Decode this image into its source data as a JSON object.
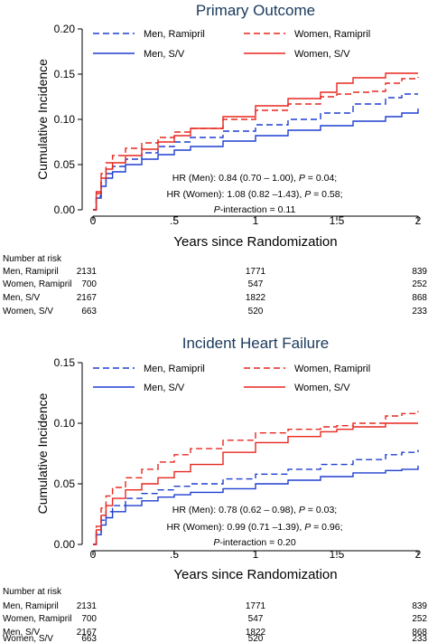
{
  "chart_data": [
    {
      "type": "line",
      "title": "Primary Outcome",
      "xlabel": "Years since Randomization",
      "ylabel": "Cumulative Incidence",
      "xlim": [
        0,
        2
      ],
      "ylim": [
        0,
        0.2
      ],
      "x_ticks": [
        {
          "v": 0,
          "label": "0"
        },
        {
          "v": 0.5,
          "label": ".5"
        },
        {
          "v": 1,
          "label": "1"
        },
        {
          "v": 1.5,
          "label": "1.5"
        },
        {
          "v": 2,
          "label": "2"
        }
      ],
      "y_ticks": [
        {
          "v": 0,
          "label": "0.00"
        },
        {
          "v": 0.05,
          "label": "0.05"
        },
        {
          "v": 0.1,
          "label": "0.10"
        },
        {
          "v": 0.15,
          "label": "0.15"
        },
        {
          "v": 0.2,
          "label": "0.20"
        }
      ],
      "series": [
        {
          "name": "Men, Ramipril",
          "color": "#1f3fd0",
          "dash": "dashed",
          "x": [
            0,
            0.02,
            0.05,
            0.08,
            0.12,
            0.2,
            0.3,
            0.4,
            0.5,
            0.6,
            0.8,
            1.0,
            1.2,
            1.4,
            1.6,
            1.8,
            1.9,
            2.0
          ],
          "y": [
            0,
            0.015,
            0.03,
            0.04,
            0.048,
            0.056,
            0.063,
            0.07,
            0.075,
            0.08,
            0.087,
            0.094,
            0.1,
            0.107,
            0.117,
            0.124,
            0.128,
            0.128
          ]
        },
        {
          "name": "Women, Ramipril",
          "color": "#e8271f",
          "dash": "dashed",
          "x": [
            0,
            0.02,
            0.05,
            0.08,
            0.12,
            0.2,
            0.3,
            0.4,
            0.5,
            0.6,
            0.8,
            1.0,
            1.2,
            1.4,
            1.5,
            1.6,
            1.7,
            1.8,
            1.9,
            2.0
          ],
          "y": [
            0,
            0.02,
            0.04,
            0.052,
            0.06,
            0.068,
            0.074,
            0.08,
            0.086,
            0.09,
            0.1,
            0.11,
            0.117,
            0.125,
            0.128,
            0.13,
            0.131,
            0.14,
            0.145,
            0.147
          ]
        },
        {
          "name": "Men, S/V",
          "color": "#1f3fd0",
          "dash": "solid",
          "x": [
            0,
            0.02,
            0.05,
            0.08,
            0.12,
            0.2,
            0.3,
            0.4,
            0.5,
            0.6,
            0.8,
            1.0,
            1.2,
            1.4,
            1.6,
            1.8,
            1.9,
            2.0
          ],
          "y": [
            0,
            0.013,
            0.026,
            0.035,
            0.042,
            0.05,
            0.056,
            0.061,
            0.066,
            0.07,
            0.076,
            0.082,
            0.088,
            0.093,
            0.098,
            0.103,
            0.107,
            0.112
          ]
        },
        {
          "name": "Women, S/V",
          "color": "#e8271f",
          "dash": "solid",
          "x": [
            0,
            0.02,
            0.05,
            0.08,
            0.12,
            0.2,
            0.3,
            0.4,
            0.5,
            0.6,
            0.8,
            1.0,
            1.2,
            1.4,
            1.5,
            1.6,
            1.8,
            2.0
          ],
          "y": [
            0,
            0.018,
            0.035,
            0.045,
            0.052,
            0.06,
            0.067,
            0.075,
            0.082,
            0.09,
            0.103,
            0.115,
            0.123,
            0.13,
            0.14,
            0.146,
            0.151,
            0.151
          ]
        }
      ],
      "annotations": [
        "HR (Men): 0.84 (0.70 – 1.00), P = 0.04;",
        "HR (Women): 1.08 (0.82 –1.43), P = 0.58;",
        "P-interaction = 0.11"
      ],
      "risk_table": {
        "header": "Number at risk",
        "rows": [
          {
            "label": "Men, Ramipril",
            "values": [
              "2131",
              "1771",
              "839"
            ]
          },
          {
            "label": "Women, Ramipril",
            "values": [
              "700",
              "547",
              "252"
            ]
          },
          {
            "label": "Men, S/V",
            "values": [
              "2167",
              "1822",
              "868"
            ]
          },
          {
            "label": "Women, S/V",
            "values": [
              "663",
              "520",
              "233"
            ]
          }
        ]
      }
    },
    {
      "type": "line",
      "title": "Incident Heart Failure",
      "xlabel": "Years since Randomization",
      "ylabel": "Cumulative Incidence",
      "xlim": [
        0,
        2
      ],
      "ylim": [
        0,
        0.15
      ],
      "x_ticks": [
        {
          "v": 0,
          "label": "0"
        },
        {
          "v": 0.5,
          "label": ".5"
        },
        {
          "v": 1,
          "label": "1"
        },
        {
          "v": 1.5,
          "label": "1.5"
        },
        {
          "v": 2,
          "label": "2"
        }
      ],
      "y_ticks": [
        {
          "v": 0,
          "label": "0.00"
        },
        {
          "v": 0.05,
          "label": "0.05"
        },
        {
          "v": 0.1,
          "label": "0.10"
        },
        {
          "v": 0.15,
          "label": "0.15"
        }
      ],
      "series": [
        {
          "name": "Men, Ramipril",
          "color": "#1f3fd0",
          "dash": "dashed",
          "x": [
            0,
            0.02,
            0.05,
            0.08,
            0.12,
            0.2,
            0.3,
            0.4,
            0.5,
            0.6,
            0.8,
            1.0,
            1.2,
            1.4,
            1.6,
            1.8,
            1.9,
            2.0
          ],
          "y": [
            0,
            0.01,
            0.02,
            0.027,
            0.032,
            0.038,
            0.042,
            0.045,
            0.048,
            0.05,
            0.054,
            0.058,
            0.062,
            0.066,
            0.07,
            0.074,
            0.076,
            0.078
          ]
        },
        {
          "name": "Women, Ramipril",
          "color": "#e8271f",
          "dash": "dashed",
          "x": [
            0,
            0.02,
            0.05,
            0.08,
            0.12,
            0.2,
            0.3,
            0.4,
            0.5,
            0.6,
            0.8,
            1.0,
            1.2,
            1.4,
            1.5,
            1.6,
            1.8,
            1.9,
            2.0
          ],
          "y": [
            0,
            0.015,
            0.03,
            0.04,
            0.047,
            0.055,
            0.062,
            0.068,
            0.074,
            0.079,
            0.086,
            0.092,
            0.095,
            0.097,
            0.098,
            0.1,
            0.106,
            0.108,
            0.11
          ]
        },
        {
          "name": "Men, S/V",
          "color": "#1f3fd0",
          "dash": "solid",
          "x": [
            0,
            0.02,
            0.05,
            0.08,
            0.12,
            0.2,
            0.3,
            0.4,
            0.5,
            0.6,
            0.8,
            1.0,
            1.2,
            1.4,
            1.6,
            1.8,
            1.9,
            2.0
          ],
          "y": [
            0,
            0.008,
            0.016,
            0.022,
            0.027,
            0.032,
            0.036,
            0.039,
            0.041,
            0.043,
            0.046,
            0.05,
            0.053,
            0.056,
            0.059,
            0.061,
            0.062,
            0.065
          ]
        },
        {
          "name": "Women, S/V",
          "color": "#e8271f",
          "dash": "solid",
          "x": [
            0,
            0.02,
            0.05,
            0.08,
            0.12,
            0.2,
            0.3,
            0.4,
            0.5,
            0.6,
            0.8,
            1.0,
            1.2,
            1.4,
            1.5,
            1.6,
            1.8,
            2.0
          ],
          "y": [
            0,
            0.012,
            0.024,
            0.032,
            0.038,
            0.045,
            0.05,
            0.055,
            0.06,
            0.066,
            0.076,
            0.084,
            0.089,
            0.093,
            0.095,
            0.097,
            0.1,
            0.1
          ]
        }
      ],
      "annotations": [
        "HR (Men): 0.78 (0.62 – 0.98), P = 0.03;",
        "HR (Women): 0.99 (0.71 –1.39), P = 0.96;",
        "P-interaction = 0.20"
      ],
      "risk_table": {
        "header": "Number at risk",
        "rows": [
          {
            "label": "Men, Ramipril",
            "values": [
              "2131",
              "1771",
              "839"
            ]
          },
          {
            "label": "Women, Ramipril",
            "values": [
              "700",
              "547",
              "252"
            ]
          },
          {
            "label": "Men, S/V",
            "values": [
              "2167",
              "1822",
              "868"
            ]
          },
          {
            "label": "Women, S/V",
            "values": [
              "663",
              "520",
              "233"
            ]
          }
        ]
      }
    }
  ]
}
